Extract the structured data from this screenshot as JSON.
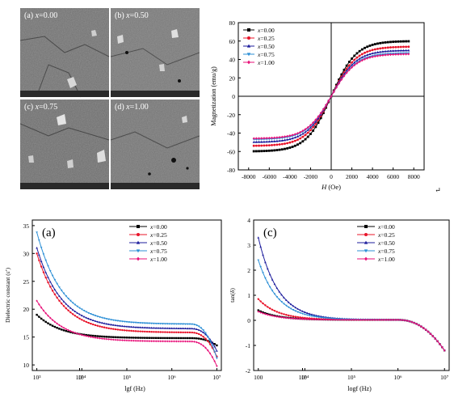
{
  "sem": {
    "panels": [
      {
        "tag": "(a)",
        "xlabel": "x",
        "val": "=0.00"
      },
      {
        "tag": "(b)",
        "xlabel": "x",
        "val": "=0.50"
      },
      {
        "tag": "(c)",
        "xlabel": "x",
        "val": "=0.75"
      },
      {
        "tag": "(d)",
        "xlabel": "x",
        "val": "=1.00"
      }
    ]
  },
  "return_mark": "↵",
  "chart_data": [
    {
      "type": "line",
      "ylabel": "Magnetization (emu/g)",
      "xlabel_var": "H",
      "xlabel_unit": " (Oe)",
      "xlim": [
        -9000,
        9000
      ],
      "ylim": [
        -80,
        80
      ],
      "x_ticks": [
        -8000,
        -6000,
        -4000,
        -2000,
        0,
        2000,
        4000,
        6000,
        8000
      ],
      "y_ticks": [
        -80,
        -60,
        -40,
        -20,
        0,
        20,
        40,
        60,
        80
      ],
      "legend_var": "x",
      "series": [
        {
          "name": "=0.00",
          "color": "#000000",
          "marker": "square",
          "ms": 60
        },
        {
          "name": "=0.25",
          "color": "#e8142a",
          "marker": "circle",
          "ms": 54
        },
        {
          "name": "=0.50",
          "color": "#1c1c9c",
          "marker": "triangle-up",
          "ms": 50
        },
        {
          "name": "=0.75",
          "color": "#2c8fd6",
          "marker": "triangle-down",
          "ms": 47
        },
        {
          "name": "=1.00",
          "color": "#e8127a",
          "marker": "diamond",
          "ms": 46
        }
      ]
    },
    {
      "type": "line",
      "panel_label": "(a)",
      "ylabel": "Dielectric constant (ε′)",
      "xlabel": "lgf  (Hz)",
      "ylim": [
        9,
        36
      ],
      "y_ticks": [
        10,
        15,
        20,
        25,
        30,
        35
      ],
      "x_ticks": [
        "10³",
        "10³",
        "10⁴",
        "10⁵",
        "10⁶",
        "10⁷"
      ],
      "legend_var": "x",
      "series": [
        {
          "name": "=0.00",
          "color": "#000000",
          "marker": "square",
          "start": 19.0,
          "plateau": 14.8,
          "end": 13.5
        },
        {
          "name": "=0.25",
          "color": "#e8142a",
          "marker": "circle",
          "start": 30.0,
          "plateau": 15.8,
          "end": 11.5
        },
        {
          "name": "=0.50",
          "color": "#1c1c9c",
          "marker": "triangle-up",
          "start": 31.0,
          "plateau": 16.5,
          "end": 12.5
        },
        {
          "name": "=0.75",
          "color": "#2c8fd6",
          "marker": "triangle-down",
          "start": 33.8,
          "plateau": 17.3,
          "end": 11.2
        },
        {
          "name": "=1.00",
          "color": "#e8127a",
          "marker": "diamond",
          "start": 21.5,
          "plateau": 14.2,
          "end": 9.8
        }
      ]
    },
    {
      "type": "line",
      "panel_label": "(c)",
      "ylabel": "tan(δ)",
      "xlabel": "logf  (Hz)",
      "ylim": [
        -2,
        4
      ],
      "y_ticks": [
        -2,
        -1,
        0,
        1,
        2,
        3,
        4
      ],
      "x_ticks": [
        "100",
        "10³",
        "10⁴",
        "10⁵",
        "10⁶",
        "10⁷"
      ],
      "legend_var": "x",
      "series": [
        {
          "name": "=0.00",
          "color": "#000000",
          "marker": "square",
          "start": 0.4,
          "end": -1.2
        },
        {
          "name": "=0.25",
          "color": "#e8142a",
          "marker": "circle",
          "start": 0.85,
          "end": -1.2
        },
        {
          "name": "=0.50",
          "color": "#1c1c9c",
          "marker": "triangle-up",
          "start": 3.3,
          "end": -1.2
        },
        {
          "name": "=0.75",
          "color": "#2c8fd6",
          "marker": "triangle-down",
          "start": 2.4,
          "end": -1.2
        },
        {
          "name": "=1.00",
          "color": "#e8127a",
          "marker": "diamond",
          "start": 0.35,
          "end": -1.2
        }
      ]
    }
  ]
}
